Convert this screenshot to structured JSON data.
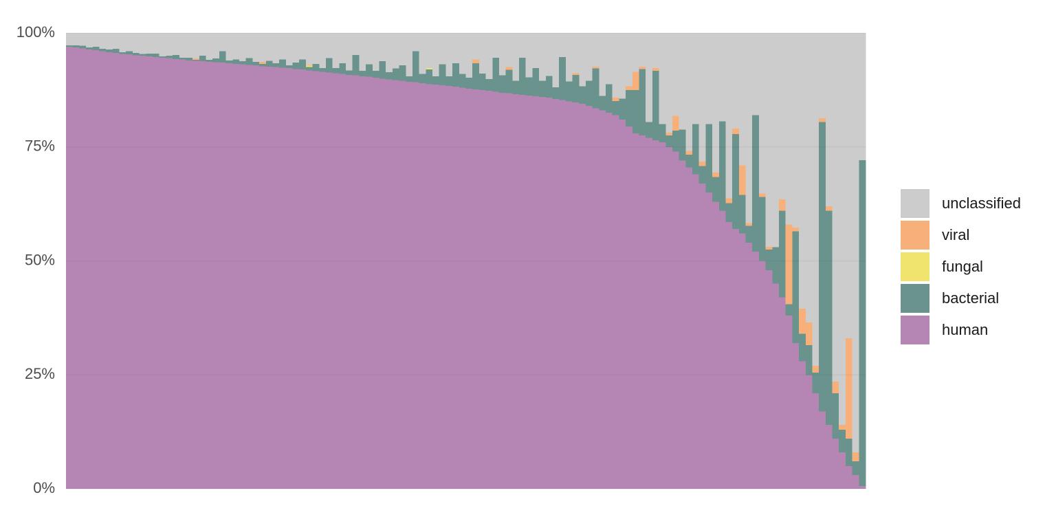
{
  "chart_data": {
    "type": "stacked-bar",
    "categories": [
      null,
      null,
      null,
      null,
      null,
      null,
      null,
      null,
      null,
      null,
      null,
      null,
      null,
      null,
      null,
      null,
      null,
      null,
      null,
      null,
      null,
      null,
      null,
      null,
      null,
      null,
      null,
      null,
      null,
      null,
      null,
      null,
      null,
      null,
      null,
      null,
      null,
      null,
      null,
      null,
      null,
      null,
      null,
      null,
      null,
      null,
      null,
      null,
      null,
      null,
      null,
      null,
      null,
      null,
      null,
      null,
      null,
      null,
      null,
      null,
      null,
      null,
      null,
      null,
      null,
      null,
      null,
      null,
      null,
      null,
      null,
      null,
      null,
      null,
      null,
      null,
      null,
      null,
      null,
      null,
      null,
      null,
      null,
      null,
      null,
      null,
      null,
      null,
      null,
      null,
      null,
      null,
      null,
      null,
      null,
      null,
      null,
      null,
      null,
      null,
      null,
      null,
      null,
      null,
      null,
      null,
      null,
      null,
      null,
      null,
      null,
      null,
      null,
      null,
      null,
      null,
      null,
      null,
      null,
      null
    ],
    "series": [
      {
        "name": "human",
        "color": "#b586b3",
        "values": [
          97,
          96.8,
          96.6,
          96.4,
          96.2,
          96,
          95.8,
          95.6,
          95.4,
          95.3,
          95.1,
          95,
          94.9,
          94.7,
          94.6,
          94.5,
          94.3,
          94.2,
          94,
          93.9,
          93.8,
          93.7,
          93.6,
          93.5,
          93.4,
          93.2,
          93.1,
          93,
          92.9,
          92.7,
          92.6,
          92.5,
          92.4,
          92.3,
          92.1,
          92,
          91.8,
          91.6,
          91.5,
          91.3,
          91.2,
          91,
          90.8,
          90.7,
          90.5,
          90.4,
          90.2,
          90,
          89.8,
          89.7,
          89.5,
          89.3,
          89.2,
          89,
          88.8,
          88.7,
          88.5,
          88.4,
          88.2,
          88,
          87.8,
          87.6,
          87.5,
          87.3,
          87.1,
          86.9,
          86.8,
          86.6,
          86.4,
          86.3,
          86.1,
          86,
          85.8,
          85.5,
          85.3,
          85,
          84.8,
          84.5,
          84,
          83.5,
          83,
          82.5,
          82,
          81,
          79.5,
          78,
          77.5,
          77,
          76.5,
          76,
          75,
          74,
          72,
          70.5,
          69,
          67,
          65,
          63,
          61,
          58.5,
          57,
          56,
          54,
          52,
          50,
          48,
          45,
          42,
          38,
          32,
          28,
          25,
          21,
          17,
          14,
          11,
          8,
          5,
          3,
          0.6
        ]
      },
      {
        "name": "bacterial",
        "color": "#6a938e",
        "values": [
          0.3,
          0.5,
          0.6,
          0.4,
          0.8,
          0.5,
          0.6,
          0.9,
          0.4,
          0.7,
          0.5,
          0.4,
          0.6,
          0.8,
          0.3,
          0.5,
          0.9,
          0.4,
          0.6,
          0.2,
          1.2,
          0.4,
          0.8,
          2.5,
          0.6,
          1,
          0.7,
          1.5,
          0.8,
          0.5,
          1.3,
          0.9,
          1.8,
          0.6,
          1.4,
          2.2,
          0.7,
          1.6,
          0.8,
          3.2,
          1.1,
          2.4,
          1,
          4.5,
          1.2,
          2.7,
          1.5,
          3.8,
          1.6,
          2.5,
          3.4,
          1.2,
          6.8,
          2,
          3.2,
          1.8,
          4.6,
          2.1,
          5.2,
          3,
          2.4,
          5.8,
          3.6,
          2.6,
          7.5,
          3.8,
          5.1,
          2.9,
          8.2,
          4,
          6.2,
          3.5,
          4.8,
          2.6,
          9.4,
          4.4,
          6,
          3.8,
          5.5,
          8.7,
          3.2,
          6.3,
          3.1,
          4.6,
          8,
          9.5,
          14.6,
          3.5,
          15.2,
          4,
          2.5,
          4.6,
          6.8,
          2.8,
          11,
          3.8,
          15,
          5.4,
          19.6,
          4.2,
          20.8,
          8.5,
          3.7,
          30,
          14,
          4.5,
          8,
          19,
          2.5,
          24.5,
          6,
          6.5,
          4.5,
          63.5,
          47,
          10,
          5,
          6,
          3,
          71.5
        ]
      },
      {
        "name": "fungal",
        "color": "#f0e36e",
        "values": [
          0,
          0,
          0,
          0,
          0,
          0,
          0,
          0,
          0,
          0,
          0,
          0,
          0,
          0,
          0,
          0,
          0,
          0,
          0,
          0,
          0,
          0,
          0,
          0,
          0,
          0,
          0,
          0,
          0,
          0,
          0,
          0,
          0,
          0,
          0,
          0,
          0.3,
          0,
          0,
          0,
          0,
          0,
          0,
          0,
          0,
          0,
          0,
          0,
          0,
          0,
          0,
          0,
          0,
          0,
          0.3,
          0,
          0,
          0,
          0,
          0,
          0,
          0,
          0,
          0,
          0,
          0,
          0,
          0,
          0,
          0,
          0,
          0,
          0,
          0,
          0,
          0,
          0,
          0,
          0,
          0,
          0,
          0,
          0,
          0,
          0,
          0,
          0,
          0,
          0,
          0,
          0,
          0,
          0,
          0,
          0,
          0,
          0,
          0,
          0,
          0,
          0,
          0,
          0,
          0,
          0,
          0,
          0,
          0,
          0,
          0,
          0,
          0,
          0,
          0,
          0,
          0,
          0,
          0,
          0,
          0
        ]
      },
      {
        "name": "viral",
        "color": "#f7b07a",
        "values": [
          0,
          0,
          0,
          0,
          0,
          0,
          0,
          0,
          0,
          0,
          0,
          0,
          0,
          0,
          0,
          0,
          0,
          0,
          0,
          0.3,
          0,
          0,
          0,
          0,
          0,
          0,
          0,
          0,
          0,
          0.5,
          0,
          0,
          0,
          0,
          0,
          0,
          0.2,
          0,
          0,
          0,
          0,
          0,
          0,
          0,
          0,
          0,
          0,
          0,
          0,
          0,
          0,
          0,
          0,
          0,
          0,
          0,
          0,
          0,
          0,
          0,
          0,
          0.8,
          0,
          0,
          0,
          0,
          0.6,
          0,
          0,
          0,
          0,
          0,
          0,
          0,
          0,
          0,
          0.4,
          0,
          0,
          0.4,
          0,
          0,
          0.7,
          0,
          0.8,
          4,
          0.5,
          0,
          0.6,
          0,
          0.6,
          3.2,
          0,
          0.8,
          0,
          1,
          0,
          1,
          0,
          1,
          1.2,
          6.5,
          0.6,
          0,
          0.8,
          0.6,
          0,
          2.5,
          17.5,
          0.8,
          5.5,
          5,
          1.5,
          0.8,
          1,
          2.5,
          1,
          22,
          2,
          0
        ]
      },
      {
        "name": "unclassified",
        "color": "#cccccc",
        "values": [
          2.7,
          2.7,
          2.8,
          3.2,
          3,
          3.5,
          3.6,
          3.5,
          4.2,
          4,
          4.4,
          4.6,
          4.5,
          4.5,
          5.1,
          5,
          4.8,
          5.4,
          5.4,
          5.6,
          5,
          5.9,
          5.6,
          4,
          6,
          5.8,
          6.2,
          5.5,
          6.3,
          6.3,
          6.1,
          6.6,
          5.8,
          7.1,
          6.5,
          5.8,
          7,
          6.8,
          7.7,
          5.5,
          7.7,
          6.6,
          8.2,
          4.8,
          8.3,
          6.9,
          8.3,
          6.2,
          8.6,
          7.8,
          7.1,
          9.5,
          4,
          9,
          7.7,
          9.5,
          6.9,
          9.5,
          6.6,
          9,
          9.8,
          5.8,
          8.9,
          10.1,
          5.4,
          9.3,
          7.5,
          10.5,
          5.4,
          9.7,
          7.7,
          10.5,
          9.4,
          11.9,
          5.3,
          10.6,
          8.8,
          11.7,
          10.5,
          7.4,
          13.8,
          11.2,
          14.2,
          14.4,
          11.7,
          8.5,
          7.4,
          19.5,
          7.7,
          20,
          21.9,
          18.2,
          21.2,
          25.9,
          20,
          28.2,
          20,
          30.6,
          19.4,
          36.3,
          21,
          29,
          41.7,
          18,
          35.2,
          46.9,
          47,
          36.5,
          42,
          42.7,
          60.5,
          63.5,
          73,
          18.7,
          38,
          76.5,
          86,
          67,
          92,
          27.9
        ]
      }
    ],
    "ylim": [
      0,
      100
    ],
    "yticks": [
      {
        "value": 0,
        "label": "0%"
      },
      {
        "value": 25,
        "label": "25%"
      },
      {
        "value": 50,
        "label": "50%"
      },
      {
        "value": 75,
        "label": "75%"
      },
      {
        "value": 100,
        "label": "100%"
      }
    ],
    "grid": true,
    "legend": "right"
  }
}
